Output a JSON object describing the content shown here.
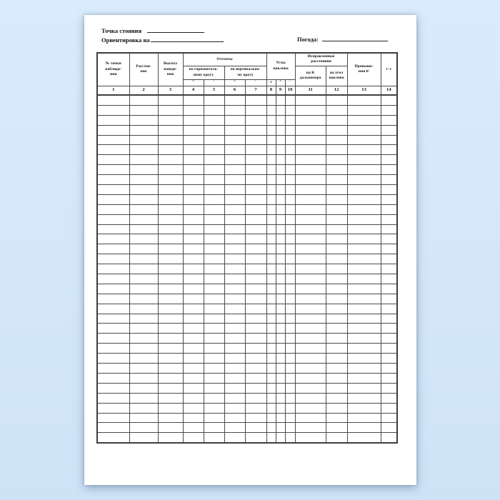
{
  "page": {
    "line1_label": "Точка стояния",
    "line2_label": "Ориентировка на",
    "weather_label": "Погода:"
  },
  "table": {
    "headers": {
      "point_no": "№ точки\nнаблюде-\nния",
      "distance": "Расстоя-\nние",
      "target_height": "Высота\nнаведе-\nния",
      "readings": "Отсчеты",
      "horizontal_circle": "по горизонталь-\nному кругу",
      "vertical_circle": "по вертикально-\nму кругу",
      "slope_angles": "Углы\nнаклона",
      "corrected_distances": "Исправленные\nрасстояния",
      "for_k_rangefinder": "на K\nдальномера",
      "for_slope_angle": "на угол\nнаклона",
      "elevations": "Превыше-\nния h′",
      "i_minus_v": "i−v"
    },
    "symbol_row": [
      "°",
      "′",
      "°",
      "′",
      "±",
      "°",
      "′"
    ],
    "column_numbers": [
      "1",
      "2",
      "3",
      "4",
      "5",
      "6",
      "7",
      "8",
      "9",
      "10",
      "11",
      "12",
      "13",
      "14"
    ],
    "body_row_count": 35,
    "column_count": 14
  },
  "colors": {
    "background": "#d6e9fb",
    "page": "#ffffff",
    "grid_line": "#4a4a4a",
    "text": "#111111"
  }
}
